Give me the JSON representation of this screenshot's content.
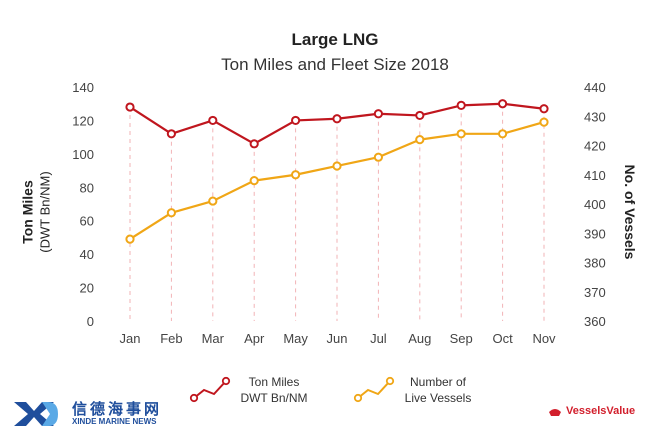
{
  "chart_data": {
    "type": "line",
    "title": "Large LNG",
    "subtitle": "Ton Miles and Fleet Size 2018",
    "categories": [
      "Jan",
      "Feb",
      "Mar",
      "Apr",
      "May",
      "Jun",
      "Jul",
      "Aug",
      "Sep",
      "Oct",
      "Nov"
    ],
    "ylabel_left": "Ton Miles",
    "ylabel_left_sub": "(DWT Bn/NM)",
    "ylabel_right": "No. of Vessels",
    "ylim_left": [
      0,
      140
    ],
    "ylim_right": [
      360,
      440
    ],
    "yticks_left": [
      0,
      20,
      40,
      60,
      80,
      100,
      120,
      140
    ],
    "yticks_right": [
      360,
      370,
      380,
      390,
      400,
      410,
      420,
      430,
      440
    ],
    "grid": "vertical dashed lines to ton-miles points",
    "legend_position": "bottom",
    "series": [
      {
        "name": "Ton Miles DWT Bn/NM",
        "legend_line1": "Ton Miles",
        "legend_line2": "DWT Bn/NM",
        "axis": "left",
        "color": "#c0161e",
        "values": [
          128,
          112,
          120,
          106,
          120,
          121,
          124,
          123,
          129,
          130,
          127
        ]
      },
      {
        "name": "Number of Live Vessels",
        "legend_line1": "Number of",
        "legend_line2": "Live Vessels",
        "axis": "right",
        "color": "#f0a616",
        "values": [
          388,
          397,
          401,
          408,
          410,
          413,
          416,
          422,
          424,
          424,
          428
        ]
      }
    ]
  },
  "branding": {
    "watermark_cn": "信德海事网",
    "watermark_en": "XINDE MARINE NEWS",
    "source_logo": "VesselsValue",
    "logo_color": "#1f4e9c",
    "brand_color": "#d21f2c"
  }
}
